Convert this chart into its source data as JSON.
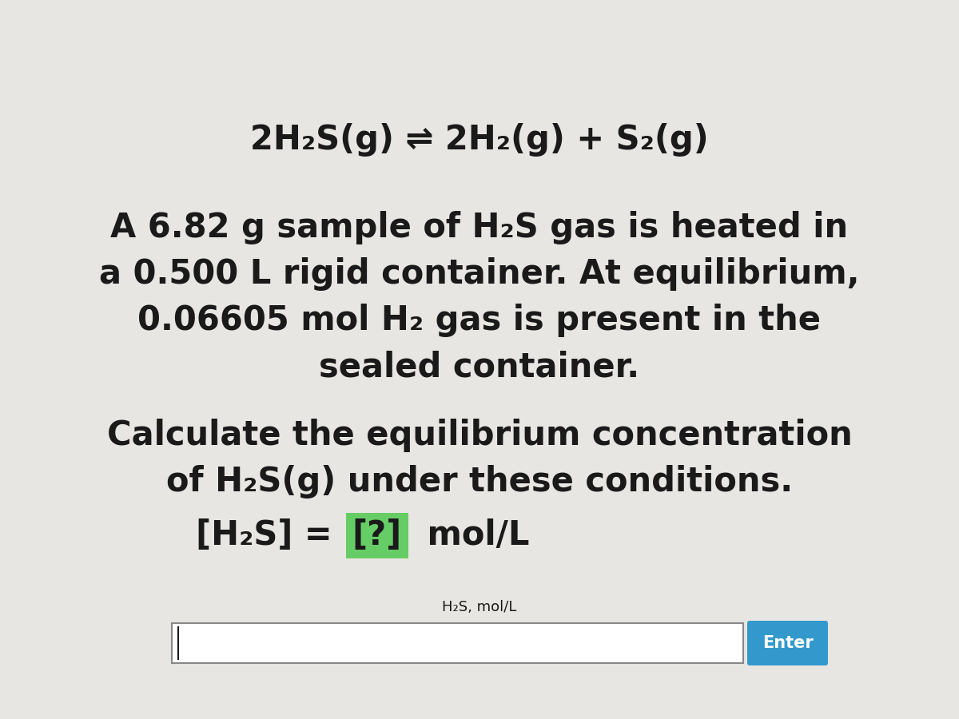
{
  "bg_color": "#e8e6e2",
  "text_color": "#1a1a1a",
  "equation_line": "2H₂S(g) ⇌ 2H₂(g) + S₂(g)",
  "description_lines": [
    "A 6.82 g sample of H₂S gas is heated in",
    "a 0.500 L rigid container. At equilibrium,",
    "0.06605 mol H₂ gas is present in the",
    "sealed container."
  ],
  "question_lines": [
    "Calculate the equilibrium concentration",
    "of H₂S(g) under these conditions."
  ],
  "input_label": "H₂S, mol/L",
  "enter_button_text": "Enter",
  "enter_button_color": "#3399cc",
  "question_box_color": "#66cc66",
  "equation_fontsize": 30,
  "description_fontsize": 30,
  "question_fontsize": 30,
  "answer_fontsize": 30,
  "input_label_fontsize": 13,
  "enter_button_fontsize": 15
}
